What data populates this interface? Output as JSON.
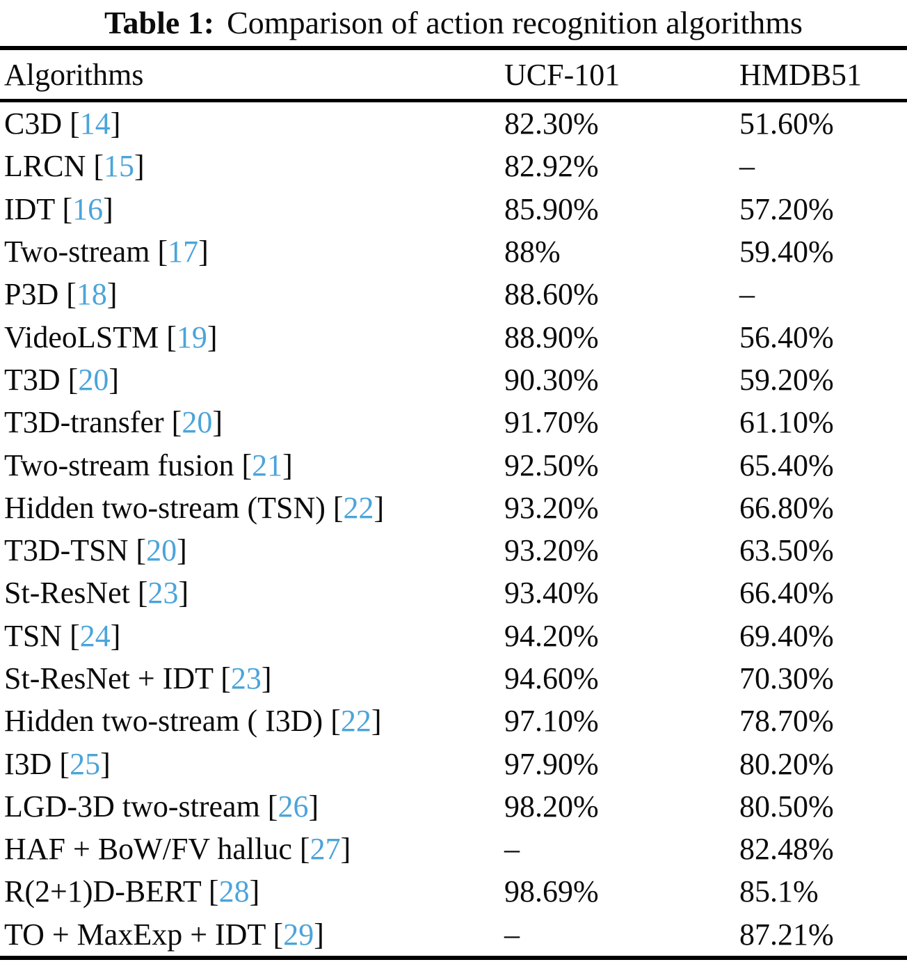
{
  "caption": {
    "label": "Table 1:",
    "text": "Comparison of action recognition algorithms"
  },
  "accent_color": "#4ba4da",
  "columns": [
    "Algorithms",
    "UCF-101",
    "HMDB51"
  ],
  "chart_data": {
    "type": "table",
    "title": "Table 1: Comparison of action recognition algorithms",
    "columns": [
      "Algorithms",
      "UCF-101",
      "HMDB51"
    ],
    "rows": [
      {
        "algorithm": "C3D",
        "cite": "14",
        "ucf101": "82.30%",
        "hmdb51": "51.60%"
      },
      {
        "algorithm": "LRCN",
        "cite": "15",
        "ucf101": "82.92%",
        "hmdb51": "–"
      },
      {
        "algorithm": "IDT",
        "cite": "16",
        "ucf101": "85.90%",
        "hmdb51": "57.20%"
      },
      {
        "algorithm": "Two-stream",
        "cite": "17",
        "ucf101": "88%",
        "hmdb51": "59.40%"
      },
      {
        "algorithm": "P3D",
        "cite": "18",
        "ucf101": "88.60%",
        "hmdb51": "–"
      },
      {
        "algorithm": "VideoLSTM",
        "cite": "19",
        "ucf101": "88.90%",
        "hmdb51": "56.40%"
      },
      {
        "algorithm": "T3D",
        "cite": "20",
        "ucf101": "90.30%",
        "hmdb51": "59.20%"
      },
      {
        "algorithm": "T3D-transfer",
        "cite": "20",
        "ucf101": "91.70%",
        "hmdb51": "61.10%"
      },
      {
        "algorithm": "Two-stream fusion",
        "cite": "21",
        "ucf101": "92.50%",
        "hmdb51": "65.40%"
      },
      {
        "algorithm": "Hidden two-stream (TSN)",
        "cite": "22",
        "ucf101": "93.20%",
        "hmdb51": "66.80%"
      },
      {
        "algorithm": "T3D-TSN",
        "cite": "20",
        "ucf101": "93.20%",
        "hmdb51": "63.50%"
      },
      {
        "algorithm": "St-ResNet",
        "cite": "23",
        "ucf101": "93.40%",
        "hmdb51": "66.40%"
      },
      {
        "algorithm": "TSN",
        "cite": "24",
        "ucf101": "94.20%",
        "hmdb51": "69.40%"
      },
      {
        "algorithm": "St-ResNet + IDT",
        "cite": "23",
        "ucf101": "94.60%",
        "hmdb51": "70.30%"
      },
      {
        "algorithm": "Hidden two-stream ( I3D)",
        "cite": "22",
        "ucf101": "97.10%",
        "hmdb51": "78.70%"
      },
      {
        "algorithm": "I3D",
        "cite": "25",
        "ucf101": "97.90%",
        "hmdb51": "80.20%"
      },
      {
        "algorithm": "LGD-3D two-stream",
        "cite": "26",
        "ucf101": "98.20%",
        "hmdb51": "80.50%"
      },
      {
        "algorithm": "HAF + BoW/FV halluc",
        "cite": "27",
        "ucf101": "–",
        "hmdb51": "82.48%"
      },
      {
        "algorithm": "R(2+1)D-BERT",
        "cite": "28",
        "ucf101": "98.69%",
        "hmdb51": "85.1%"
      },
      {
        "algorithm": "TO + MaxExp + IDT",
        "cite": "29",
        "ucf101": "–",
        "hmdb51": "87.21%"
      }
    ]
  }
}
